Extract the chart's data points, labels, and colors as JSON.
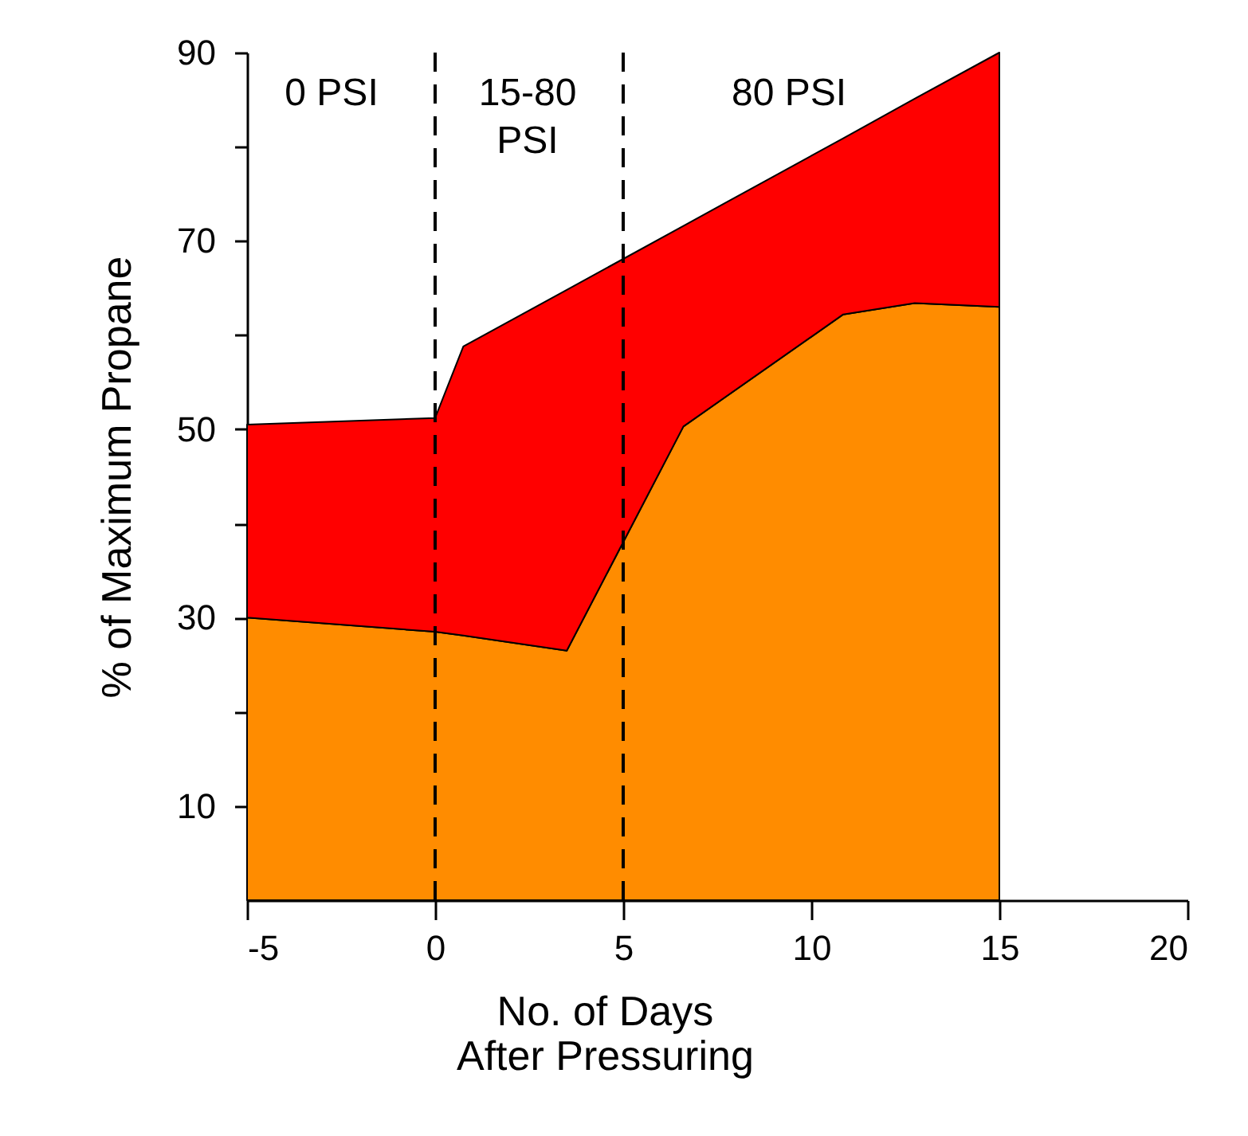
{
  "chart_data": {
    "type": "area",
    "stacked": true,
    "xlabel": "No. of Days\nAfter Pressuring",
    "ylabel": "% of Maximum Propane",
    "x": [
      -5,
      0,
      0.75,
      3.5,
      6.6,
      10.85,
      12.75,
      15
    ],
    "series": [
      {
        "color": "#ff8c00",
        "values": [
          30,
          28.5,
          28.1,
          26.5,
          50.3,
          62.2,
          63.4,
          63
        ]
      },
      {
        "color": "#ff0000",
        "values": [
          20.5,
          22.7,
          30.7,
          38.3,
          21.3,
          18.7,
          21.7,
          27
        ]
      }
    ],
    "xlim": [
      -5,
      20
    ],
    "xticks": [
      -5,
      0,
      5,
      10,
      15,
      20
    ],
    "ylim": [
      0,
      90
    ],
    "yticks": [
      10,
      {
        "value": 20,
        "label": null
      },
      30,
      {
        "value": 40,
        "label": null
      },
      50,
      {
        "value": 60,
        "label": null
      },
      70,
      {
        "value": 80,
        "label": null
      },
      90
    ],
    "ref_lines": [
      {
        "axis": "x",
        "value": 0,
        "color": "#000000",
        "line_style": "dashed"
      },
      {
        "axis": "x",
        "value": 5,
        "color": "#000000",
        "line_style": "dashed"
      }
    ],
    "annotations": [
      "0 PSI",
      "15-80\nPSI",
      "80 PSI"
    ],
    "grid": false
  }
}
